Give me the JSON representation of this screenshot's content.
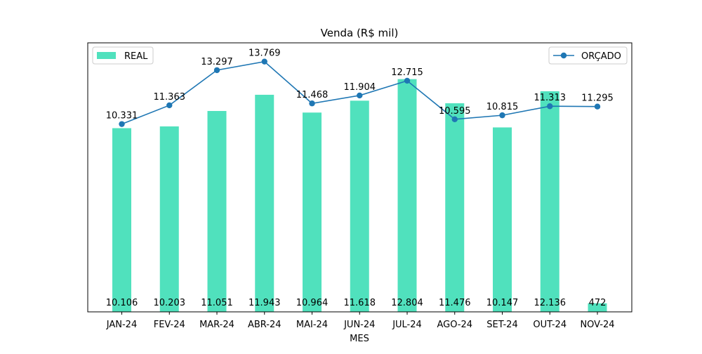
{
  "chart_data": {
    "type": "bar",
    "title": "Venda (R$ mil)",
    "xlabel": "MES",
    "ylabel": "",
    "categories": [
      "JAN-24",
      "FEV-24",
      "MAR-24",
      "ABR-24",
      "MAI-24",
      "JUN-24",
      "JUL-24",
      "AGO-24",
      "SET-24",
      "OUT-24",
      "NOV-24"
    ],
    "series": [
      {
        "name": "REAL",
        "type": "bar",
        "color": "#50e1bd",
        "values": [
          10106,
          10203,
          11051,
          11943,
          10964,
          11618,
          12804,
          11476,
          10147,
          12136,
          472
        ],
        "labels": [
          "10.106",
          "10.203",
          "11.051",
          "11.943",
          "10.964",
          "11.618",
          "12.804",
          "11.476",
          "10.147",
          "12.136",
          "472"
        ],
        "legend_position": "upper-left"
      },
      {
        "name": "ORÇADO",
        "type": "line",
        "color": "#1f77b4",
        "values": [
          10331,
          11363,
          13297,
          13769,
          11468,
          11904,
          12715,
          10595,
          10815,
          11313,
          11295
        ],
        "labels": [
          "10.331",
          "11.363",
          "13.297",
          "13.769",
          "11.468",
          "11.904",
          "12.715",
          "10.595",
          "10.815",
          "11.313",
          "11.295"
        ],
        "legend_position": "upper-right"
      }
    ],
    "grid": false,
    "y_axis_visible": false
  }
}
